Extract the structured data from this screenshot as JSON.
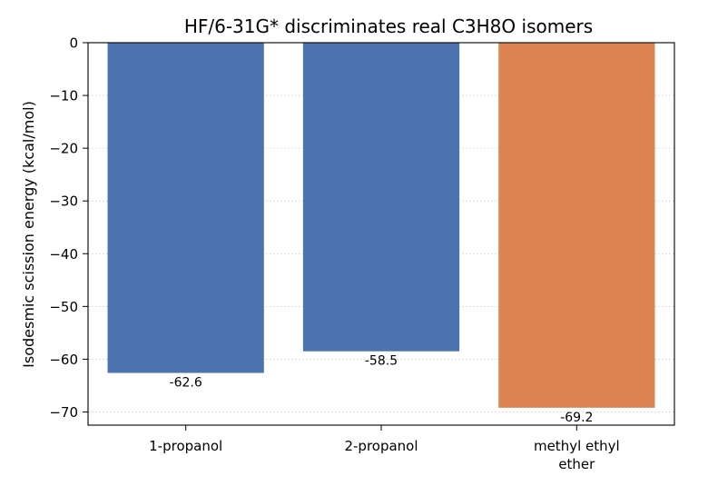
{
  "chart_data": {
    "type": "bar",
    "title": "HF/6-31G* discriminates real C3H8O isomers",
    "xlabel": "",
    "ylabel": "Isodesmic scission energy (kcal/mol)",
    "categories": [
      [
        "1-propanol"
      ],
      [
        "2-propanol"
      ],
      [
        "methyl ethyl",
        "ether"
      ]
    ],
    "values": [
      -62.6,
      -58.5,
      -69.2
    ],
    "value_labels": [
      "-62.6",
      "-58.5",
      "-69.2"
    ],
    "bar_colors": [
      "#4c72b0",
      "#4c72b0",
      "#dd8452"
    ],
    "ylim": [
      -72.5,
      0
    ],
    "yticks": [
      0,
      -10,
      -20,
      -30,
      -40,
      -50,
      -60,
      -70
    ],
    "ytick_labels": [
      "0",
      "−10",
      "−20",
      "−30",
      "−40",
      "−50",
      "−60",
      "−70"
    ],
    "grid": "y-dotted",
    "legend": "none"
  }
}
